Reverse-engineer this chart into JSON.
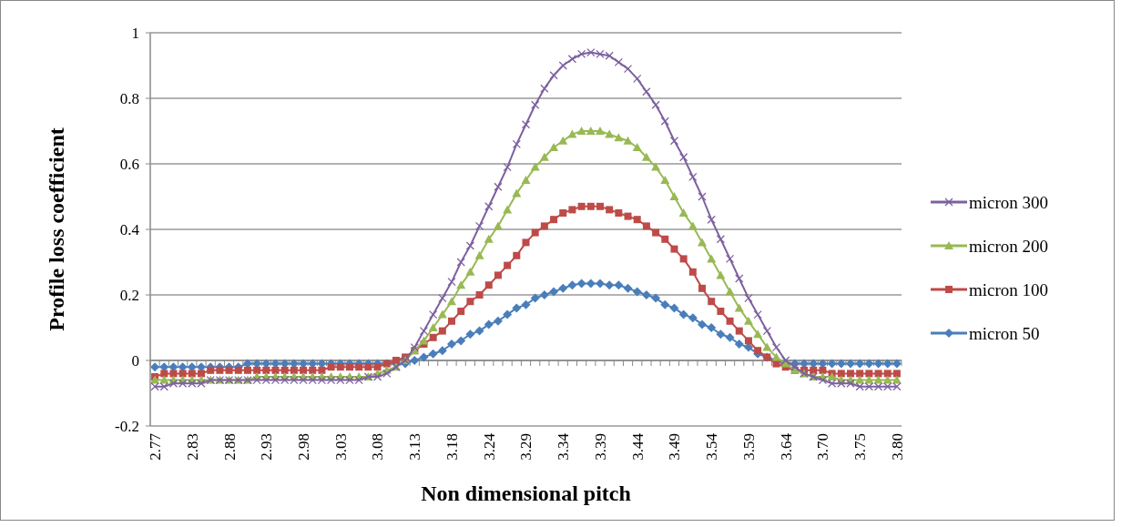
{
  "chart_data": {
    "type": "line",
    "xlabel": "Non dimensional pitch",
    "ylabel": "Profile loss coefficient",
    "categories": [
      "2.77",
      null,
      null,
      null,
      "2.83",
      null,
      null,
      null,
      "2.88",
      null,
      null,
      null,
      "2.93",
      null,
      null,
      null,
      "2.98",
      null,
      null,
      null,
      "3.03",
      null,
      null,
      null,
      "3.08",
      null,
      null,
      null,
      "3.13",
      null,
      null,
      null,
      "3.18",
      null,
      null,
      null,
      "3.24",
      null,
      null,
      null,
      "3.29",
      null,
      null,
      null,
      "3.34",
      null,
      null,
      null,
      "3.39",
      null,
      null,
      null,
      "3.44",
      null,
      null,
      null,
      "3.49",
      null,
      null,
      null,
      "3.54",
      null,
      null,
      null,
      "3.59",
      null,
      null,
      null,
      "3.64",
      null,
      null,
      null,
      "3.70",
      null,
      null,
      null,
      "3.75",
      null,
      null,
      null,
      "3.80"
    ],
    "series": [
      {
        "name": "micron 50",
        "color": "#4a7ebb",
        "marker": "diamond",
        "values": [
          -0.02,
          -0.02,
          -0.02,
          -0.02,
          -0.02,
          -0.02,
          -0.02,
          -0.02,
          -0.02,
          -0.02,
          -0.01,
          -0.01,
          -0.01,
          -0.01,
          -0.01,
          -0.01,
          -0.01,
          -0.01,
          -0.01,
          -0.01,
          -0.01,
          -0.01,
          -0.01,
          -0.01,
          -0.01,
          -0.01,
          -0.01,
          -0.01,
          0.0,
          0.01,
          0.02,
          0.03,
          0.05,
          0.06,
          0.08,
          0.09,
          0.11,
          0.12,
          0.14,
          0.16,
          0.17,
          0.19,
          0.2,
          0.21,
          0.22,
          0.23,
          0.235,
          0.235,
          0.235,
          0.23,
          0.23,
          0.22,
          0.21,
          0.2,
          0.19,
          0.17,
          0.16,
          0.14,
          0.13,
          0.11,
          0.1,
          0.08,
          0.07,
          0.05,
          0.04,
          0.02,
          0.01,
          0.0,
          -0.01,
          -0.01,
          -0.01,
          -0.01,
          -0.01,
          -0.01,
          -0.01,
          -0.01,
          -0.01,
          -0.01,
          -0.01,
          -0.01,
          -0.01
        ]
      },
      {
        "name": "micron 100",
        "color": "#be4b48",
        "marker": "square",
        "values": [
          -0.05,
          -0.04,
          -0.04,
          -0.04,
          -0.04,
          -0.04,
          -0.03,
          -0.03,
          -0.03,
          -0.03,
          -0.03,
          -0.03,
          -0.03,
          -0.03,
          -0.03,
          -0.03,
          -0.03,
          -0.03,
          -0.03,
          -0.02,
          -0.02,
          -0.02,
          -0.02,
          -0.02,
          -0.02,
          -0.01,
          0.0,
          0.01,
          0.03,
          0.05,
          0.07,
          0.09,
          0.12,
          0.15,
          0.18,
          0.2,
          0.23,
          0.26,
          0.29,
          0.32,
          0.36,
          0.39,
          0.41,
          0.43,
          0.45,
          0.46,
          0.47,
          0.47,
          0.47,
          0.46,
          0.45,
          0.44,
          0.43,
          0.41,
          0.39,
          0.37,
          0.34,
          0.31,
          0.27,
          0.22,
          0.18,
          0.15,
          0.12,
          0.09,
          0.06,
          0.03,
          0.01,
          -0.01,
          -0.02,
          -0.03,
          -0.03,
          -0.03,
          -0.03,
          -0.04,
          -0.04,
          -0.04,
          -0.04,
          -0.04,
          -0.04,
          -0.04,
          -0.04
        ]
      },
      {
        "name": "micron 200",
        "color": "#98b954",
        "marker": "triangle",
        "values": [
          -0.06,
          -0.06,
          -0.06,
          -0.06,
          -0.06,
          -0.06,
          -0.06,
          -0.06,
          -0.06,
          -0.06,
          -0.06,
          -0.05,
          -0.05,
          -0.05,
          -0.05,
          -0.05,
          -0.05,
          -0.05,
          -0.05,
          -0.05,
          -0.05,
          -0.05,
          -0.05,
          -0.05,
          -0.04,
          -0.03,
          -0.02,
          0.0,
          0.03,
          0.06,
          0.1,
          0.14,
          0.18,
          0.23,
          0.27,
          0.32,
          0.37,
          0.41,
          0.46,
          0.51,
          0.55,
          0.59,
          0.62,
          0.65,
          0.67,
          0.69,
          0.7,
          0.7,
          0.7,
          0.69,
          0.68,
          0.67,
          0.65,
          0.62,
          0.59,
          0.55,
          0.5,
          0.45,
          0.41,
          0.36,
          0.31,
          0.26,
          0.21,
          0.16,
          0.12,
          0.08,
          0.04,
          0.01,
          -0.01,
          -0.03,
          -0.04,
          -0.05,
          -0.05,
          -0.05,
          -0.06,
          -0.06,
          -0.06,
          -0.06,
          -0.06,
          -0.06,
          -0.06
        ]
      },
      {
        "name": "micron 300",
        "color": "#7d60a0",
        "marker": "cross",
        "values": [
          -0.08,
          -0.08,
          -0.07,
          -0.07,
          -0.07,
          -0.07,
          -0.06,
          -0.06,
          -0.06,
          -0.06,
          -0.06,
          -0.06,
          -0.06,
          -0.06,
          -0.06,
          -0.06,
          -0.06,
          -0.06,
          -0.06,
          -0.06,
          -0.06,
          -0.06,
          -0.06,
          -0.05,
          -0.05,
          -0.04,
          -0.02,
          0.0,
          0.04,
          0.09,
          0.14,
          0.19,
          0.24,
          0.3,
          0.35,
          0.41,
          0.47,
          0.53,
          0.59,
          0.66,
          0.72,
          0.78,
          0.83,
          0.87,
          0.9,
          0.92,
          0.935,
          0.94,
          0.935,
          0.93,
          0.91,
          0.89,
          0.86,
          0.82,
          0.78,
          0.73,
          0.67,
          0.62,
          0.56,
          0.5,
          0.43,
          0.37,
          0.31,
          0.25,
          0.19,
          0.14,
          0.09,
          0.04,
          0.0,
          -0.02,
          -0.04,
          -0.05,
          -0.06,
          -0.07,
          -0.07,
          -0.07,
          -0.08,
          -0.08,
          -0.08,
          -0.08,
          -0.08
        ]
      }
    ],
    "ylim": [
      -0.2,
      1
    ],
    "yticks": [
      -0.2,
      0,
      0.2,
      0.4,
      0.6,
      0.8,
      1
    ],
    "grid": "y",
    "legend": "right",
    "line_style": "solid"
  }
}
